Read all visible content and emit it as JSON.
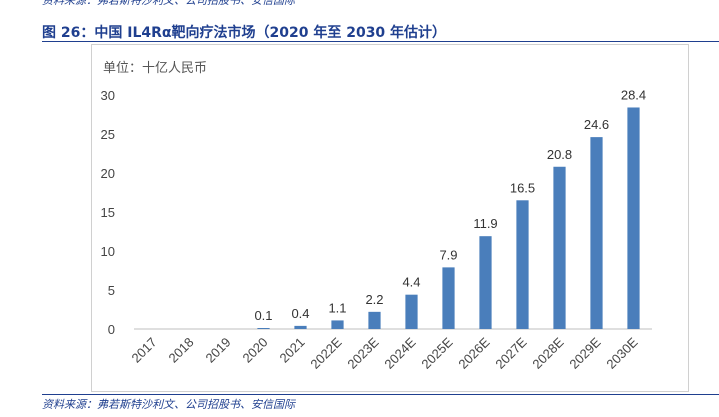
{
  "header": {
    "top_source": "资料来源：弗若斯特沙利文、公司招股书、安信国际"
  },
  "figure": {
    "title": "图 26：中国 IL4Rα靶向疗法市场（2020 年至 2030 年估计）",
    "source": "资料来源：弗若斯特沙利文、公司招股书、安信国际"
  },
  "chart_data": {
    "type": "bar",
    "unit_label": "单位：十亿人民币",
    "categories": [
      "2017",
      "2018",
      "2019",
      "2020",
      "2021",
      "2022E",
      "2023E",
      "2024E",
      "2025E",
      "2026E",
      "2027E",
      "2028E",
      "2029E",
      "2030E"
    ],
    "values": [
      null,
      null,
      null,
      0.1,
      0.4,
      1.1,
      2.2,
      4.4,
      7.9,
      11.9,
      16.5,
      20.8,
      24.6,
      28.4
    ],
    "value_labels": [
      "",
      "",
      "",
      "0.1",
      "0.4",
      "1.1",
      "2.2",
      "4.4",
      "7.9",
      "11.9",
      "16.5",
      "20.8",
      "24.6",
      "28.4"
    ],
    "yticks": [
      "0",
      "5",
      "10",
      "15",
      "20",
      "25",
      "30"
    ],
    "ylim": [
      0,
      30
    ],
    "bar_color": "#4a7ebb",
    "grid": false,
    "legend": "none"
  }
}
